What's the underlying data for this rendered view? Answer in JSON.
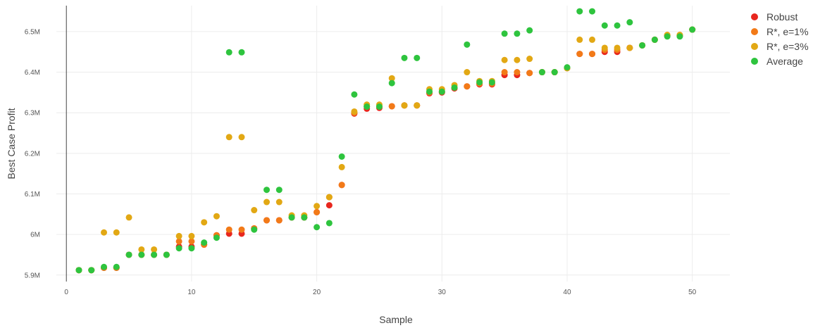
{
  "chart_data": {
    "type": "scatter",
    "xlabel": "Sample",
    "ylabel": "Best Case Profit",
    "xlim": [
      -0.8,
      53
    ],
    "ylim": [
      5.884,
      6.564
    ],
    "x_ticks": [
      0,
      10,
      20,
      30,
      40,
      50
    ],
    "x_tick_labels": [
      "0",
      "10",
      "20",
      "30",
      "40",
      "50"
    ],
    "y_ticks": [
      5.9,
      6.0,
      6.1,
      6.2,
      6.3,
      6.4,
      6.5
    ],
    "y_tick_labels": [
      "5.9M",
      "6M",
      "6.1M",
      "6.2M",
      "6.3M",
      "6.4M",
      "6.5M"
    ],
    "grid": true,
    "legend_position": "top-right",
    "x": [
      1,
      2,
      3,
      4,
      5,
      6,
      7,
      8,
      9,
      10,
      11,
      12,
      13,
      14,
      15,
      16,
      17,
      18,
      19,
      20,
      21,
      22,
      23,
      24,
      25,
      26,
      27,
      28,
      29,
      30,
      31,
      32,
      33,
      34,
      35,
      36,
      37,
      38,
      39,
      40,
      41,
      42,
      43,
      44,
      45,
      46,
      47,
      48,
      49,
      50
    ],
    "series": [
      {
        "name": "Robust",
        "color": "#e8271e",
        "values": [
          5.912,
          5.912,
          5.918,
          5.918,
          5.95,
          5.95,
          5.95,
          5.95,
          5.97,
          5.97,
          5.975,
          5.998,
          6.002,
          6.002,
          6.015,
          6.035,
          6.035,
          6.042,
          6.042,
          6.055,
          6.072,
          6.122,
          6.298,
          6.31,
          6.312,
          6.316,
          6.318,
          6.318,
          6.348,
          6.35,
          6.36,
          6.365,
          6.37,
          6.37,
          6.393,
          6.393,
          6.398,
          6.4,
          6.4,
          6.41,
          6.445,
          6.445,
          6.45,
          6.45,
          6.46,
          6.466,
          6.48,
          6.49,
          6.49,
          6.505
        ]
      },
      {
        "name": "R*, e=1%",
        "color": "#f27a18",
        "values": [
          5.912,
          5.912,
          5.918,
          5.918,
          5.95,
          5.95,
          5.95,
          5.95,
          5.983,
          5.983,
          5.975,
          5.998,
          6.012,
          6.012,
          6.015,
          6.035,
          6.035,
          6.042,
          6.042,
          6.055,
          6.092,
          6.122,
          6.3,
          6.315,
          6.315,
          6.316,
          6.318,
          6.318,
          6.35,
          6.352,
          6.362,
          6.365,
          6.372,
          6.372,
          6.4,
          6.4,
          6.398,
          6.4,
          6.4,
          6.41,
          6.445,
          6.445,
          6.455,
          6.455,
          6.46,
          6.466,
          6.48,
          6.49,
          6.49,
          6.505
        ]
      },
      {
        "name": "R*, e=3%",
        "color": "#e2a814",
        "values": [
          5.912,
          5.912,
          6.005,
          6.005,
          6.042,
          5.963,
          5.963,
          5.95,
          5.996,
          5.996,
          6.03,
          6.045,
          6.24,
          6.24,
          6.06,
          6.08,
          6.08,
          6.047,
          6.047,
          6.07,
          6.092,
          6.166,
          6.303,
          6.32,
          6.32,
          6.385,
          6.318,
          6.318,
          6.358,
          6.358,
          6.368,
          6.4,
          6.378,
          6.378,
          6.43,
          6.43,
          6.433,
          6.4,
          6.4,
          6.41,
          6.48,
          6.48,
          6.46,
          6.46,
          6.46,
          6.466,
          6.48,
          6.492,
          6.492,
          6.505
        ]
      },
      {
        "name": "Average",
        "color": "#2ec43e",
        "values": [
          5.912,
          5.912,
          5.92,
          5.92,
          5.95,
          5.95,
          5.95,
          5.95,
          5.966,
          5.966,
          5.98,
          5.992,
          6.449,
          6.449,
          6.012,
          6.11,
          6.11,
          6.042,
          6.042,
          6.018,
          6.028,
          6.192,
          6.345,
          6.315,
          6.315,
          6.373,
          6.435,
          6.435,
          6.352,
          6.352,
          6.362,
          6.468,
          6.375,
          6.375,
          6.495,
          6.495,
          6.503,
          6.4,
          6.4,
          6.412,
          6.55,
          6.55,
          6.515,
          6.515,
          6.523,
          6.466,
          6.48,
          6.488,
          6.488,
          6.505
        ]
      }
    ]
  }
}
